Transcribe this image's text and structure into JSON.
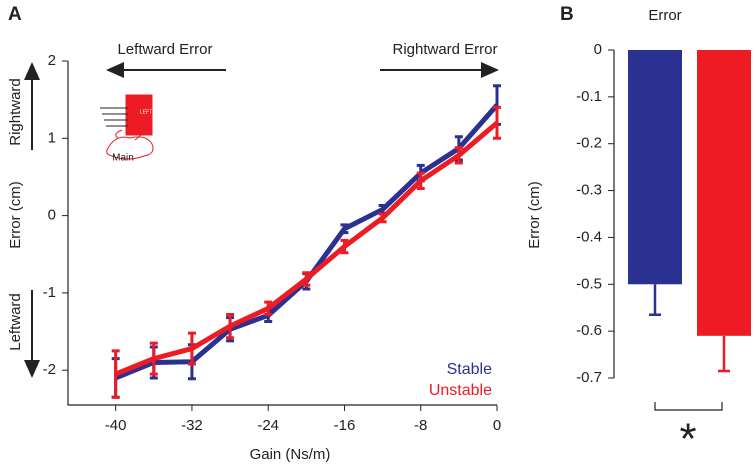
{
  "chart_data": [
    {
      "type": "line",
      "panel_label": "A",
      "xlabel": "Gain (Ns/m)",
      "ylabel": "Error (cm)",
      "annotations": [
        "Leftward Error",
        "Rightward Error",
        "Rightward",
        "Leftward",
        "Main",
        "LEFT"
      ],
      "x": [
        -40,
        -36,
        -32,
        -28,
        -24,
        -20,
        -16,
        -12,
        -8,
        -4,
        0
      ],
      "series": [
        {
          "name": "Stable",
          "color": "#2b3191",
          "values": [
            -2.1,
            -1.9,
            -1.89,
            -1.47,
            -1.29,
            -0.85,
            -0.17,
            0.08,
            0.55,
            0.87,
            1.43
          ],
          "errors": [
            0.25,
            0.2,
            0.22,
            0.15,
            0.08,
            0.1,
            0.05,
            0.05,
            0.1,
            0.15,
            0.25
          ]
        },
        {
          "name": "Unstable",
          "color": "#ed1c24",
          "values": [
            -2.05,
            -1.85,
            -1.72,
            -1.43,
            -1.2,
            -0.82,
            -0.4,
            -0.03,
            0.45,
            0.78,
            1.2
          ],
          "errors": [
            0.3,
            0.2,
            0.2,
            0.15,
            0.08,
            0.08,
            0.08,
            0.05,
            0.1,
            0.1,
            0.2
          ]
        }
      ],
      "xlim": [
        -45,
        0
      ],
      "xticks": [
        -40,
        -32,
        -24,
        -16,
        -8,
        0
      ],
      "ylim": [
        -2.45,
        2
      ],
      "yticks": [
        -2,
        -1,
        0,
        1,
        2
      ],
      "legend": "lower right"
    },
    {
      "type": "bar",
      "panel_label": "B",
      "title": "Error",
      "ylabel": "Error (cm)",
      "significance": "*",
      "categories": [
        null,
        null
      ],
      "values": [
        -0.5,
        -0.61
      ],
      "errors": [
        0.065,
        0.075
      ],
      "colors": [
        "#2b3191",
        "#ed1c24"
      ],
      "ylim": [
        -0.7,
        0
      ],
      "yticks": [
        0,
        -0.1,
        -0.2,
        -0.3,
        -0.4,
        -0.5,
        -0.6,
        -0.7
      ]
    }
  ]
}
